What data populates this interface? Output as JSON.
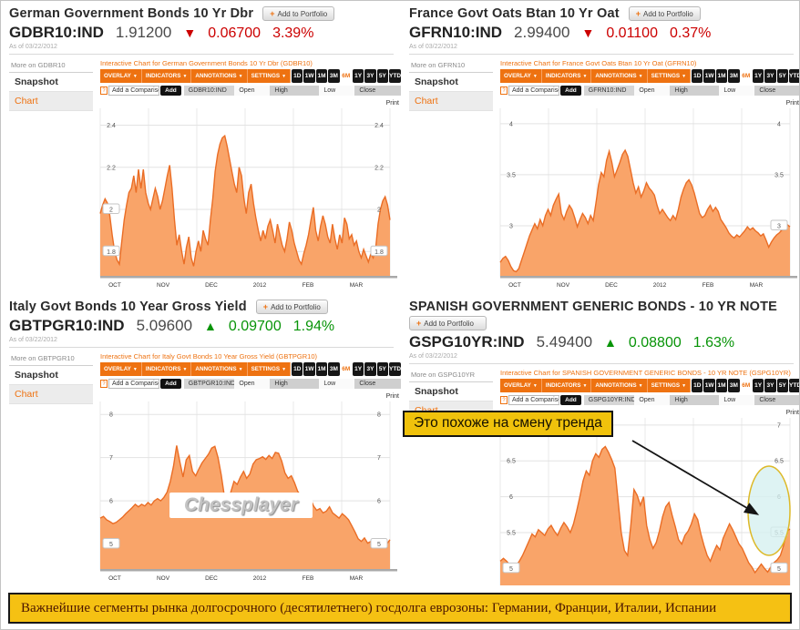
{
  "page": {
    "banner": {
      "text": "Важнейшие сегменты рынка долгосрочного (десятилетнего) госдолга еврозоны: Германии, Франции, Италии, Испании"
    },
    "annotation": {
      "text": "Это похоже на смену тренда"
    },
    "watermark": "Chessplayer"
  },
  "labels": {
    "add_to_portfolio": "Add to Portfolio",
    "snapshot": "Snapshot",
    "chart": "Chart"
  },
  "icons": {
    "plus": "+",
    "caret_down": "▼",
    "help": "?",
    "arrow_down": "▼",
    "arrow_up": "▲"
  },
  "toolbar": {
    "dropdowns": [
      "OVERLAY",
      "INDICATORS",
      "ANNOTATIONS",
      "SETTINGS"
    ],
    "periods": [
      "1D",
      "1W",
      "1M",
      "3M",
      "6M",
      "1Y",
      "3Y",
      "5Y",
      "YTD"
    ],
    "selected_period": "6M",
    "compare_hint": "Add a Comparison",
    "add_label": "Add",
    "fields": [
      "Open",
      "High",
      "Low",
      "Close"
    ],
    "print_label": "Print"
  },
  "colors": {
    "accent_orange": "#ee7211",
    "area_fill": "#f9a469",
    "area_line": "#ea6d25",
    "negative_red": "#cc0000",
    "positive_green": "#089408",
    "grid": "#e3e3e3",
    "banner_bg": "#f5c113",
    "callout_bg": "#f0c20c",
    "ellipse_stroke": "#ddb928"
  },
  "panels": [
    {
      "title": "German Government Bonds 10 Yr Dbr",
      "ticker": "GDBR10:IND",
      "price": "1.91200",
      "direction": "down",
      "arrow": "▼",
      "change": "0.06700",
      "change_pct": "3.39%",
      "as_of": "As of 03/22/2012",
      "more_on": "More on GDBR10",
      "interactive_link": "Interactive Chart for German Government Bonds 10 Yr Dbr (GDBR10)"
    },
    {
      "title": "France Govt Oats Btan 10 Yr Oat",
      "ticker": "GFRN10:IND",
      "price": "2.99400",
      "direction": "down",
      "arrow": "▼",
      "change": "0.01100",
      "change_pct": "0.37%",
      "as_of": "As of 03/22/2012",
      "more_on": "More on GFRN10",
      "interactive_link": "Interactive Chart for France Govt Oats Btan 10 Yr Oat (GFRN10)"
    },
    {
      "title": "Italy Govt Bonds 10 Year Gross Yield",
      "ticker": "GBTPGR10:IND",
      "price": "5.09600",
      "direction": "up",
      "arrow": "▲",
      "change": "0.09700",
      "change_pct": "1.94%",
      "as_of": "As of 03/22/2012",
      "more_on": "More on GBTPGR10",
      "interactive_link": "Interactive Chart for Italy Govt Bonds 10 Year Gross Yield (GBTPGR10)"
    },
    {
      "title": "SPANISH GOVERNMENT GENERIC BONDS - 10 YR NOTE",
      "ticker": "GSPG10YR:IND",
      "price": "5.49400",
      "direction": "up",
      "arrow": "▲",
      "change": "0.08800",
      "change_pct": "1.63%",
      "as_of": "As of 03/22/2012",
      "more_on": "More on GSPG10YR",
      "interactive_link": "Interactive Chart for SPANISH GOVERNMENT GENERIC BONDS - 10 YR NOTE (GSPG10YR)"
    }
  ],
  "chart_data": [
    {
      "type": "area",
      "title": "German Government Bonds 10 Yr Dbr (GDBR10), 6M yield",
      "x_labels": [
        "OCT",
        "NOV",
        "DEC",
        "2012",
        "FEB",
        "MAR"
      ],
      "yticks": [
        1.8,
        2,
        2.2,
        2.4
      ],
      "ylim": [
        1.68,
        2.48
      ],
      "values": [
        1.98,
        2.02,
        2.05,
        2.03,
        1.97,
        1.88,
        1.8,
        1.76,
        1.74,
        1.85,
        1.95,
        2.02,
        2.08,
        2.1,
        2.16,
        2.08,
        2.19,
        2.1,
        2.19,
        2.08,
        2.03,
        2.0,
        2.05,
        2.1,
        2.06,
        2.0,
        2.04,
        2.1,
        2.16,
        2.21,
        2.1,
        1.95,
        1.83,
        1.88,
        1.8,
        1.74,
        1.82,
        1.87,
        1.77,
        1.73,
        1.8,
        1.85,
        1.8,
        1.9,
        1.86,
        1.83,
        1.95,
        2.05,
        2.18,
        2.26,
        2.31,
        2.34,
        2.35,
        2.3,
        2.24,
        2.18,
        2.12,
        2.08,
        2.2,
        2.16,
        2.05,
        1.98,
        2.08,
        2.12,
        2.03,
        1.96,
        1.9,
        1.85,
        1.9,
        1.86,
        1.92,
        1.95,
        1.9,
        1.84,
        1.93,
        1.88,
        1.83,
        1.8,
        1.86,
        1.94,
        1.9,
        1.84,
        1.8,
        1.76,
        1.74,
        1.79,
        1.83,
        1.88,
        1.95,
        2.01,
        1.9,
        1.85,
        1.92,
        1.97,
        1.93,
        1.87,
        1.84,
        1.93,
        1.86,
        1.81,
        1.88,
        1.84,
        1.96,
        1.93,
        1.86,
        1.88,
        1.83,
        1.85,
        1.8,
        1.77,
        1.81,
        1.78,
        1.75,
        1.79,
        1.77,
        1.81,
        1.93,
        2.0,
        2.04,
        2.06,
        2.02,
        1.95
      ]
    },
    {
      "type": "area",
      "title": "France Govt Oats Btan 10 Yr Oat (GFRN10), 6M yield",
      "x_labels": [
        "OCT",
        "NOV",
        "DEC",
        "2012",
        "FEB",
        "MAR"
      ],
      "yticks": [
        3,
        3.5,
        4
      ],
      "ylim": [
        2.5,
        4.15
      ],
      "values": [
        2.64,
        2.68,
        2.7,
        2.66,
        2.6,
        2.56,
        2.55,
        2.58,
        2.66,
        2.74,
        2.82,
        2.9,
        2.96,
        3.02,
        2.97,
        3.06,
        3.0,
        3.1,
        3.16,
        3.1,
        3.2,
        3.26,
        3.31,
        3.12,
        3.06,
        3.14,
        3.2,
        3.16,
        3.08,
        2.99,
        3.06,
        3.12,
        3.08,
        3.02,
        3.1,
        3.05,
        3.22,
        3.4,
        3.52,
        3.48,
        3.64,
        3.73,
        3.62,
        3.48,
        3.55,
        3.62,
        3.7,
        3.74,
        3.68,
        3.55,
        3.42,
        3.32,
        3.38,
        3.28,
        3.34,
        3.42,
        3.37,
        3.34,
        3.3,
        3.2,
        3.12,
        3.16,
        3.12,
        3.08,
        3.05,
        3.1,
        3.06,
        3.16,
        3.28,
        3.36,
        3.42,
        3.45,
        3.4,
        3.32,
        3.22,
        3.12,
        3.08,
        3.1,
        3.16,
        3.2,
        3.14,
        3.18,
        3.14,
        3.06,
        3.02,
        2.98,
        2.93,
        2.9,
        2.88,
        2.91,
        2.89,
        2.92,
        2.95,
        2.99,
        2.96,
        2.98,
        2.95,
        2.93,
        2.9,
        2.92,
        2.86,
        2.79,
        2.84,
        2.88,
        2.91,
        2.93,
        2.96,
        2.99,
        3.01,
        2.99
      ]
    },
    {
      "type": "area",
      "title": "Italy Govt Bonds 10 Year Gross Yield (GBTPGR10), 6M yield",
      "x_labels": [
        "OCT",
        "NOV",
        "DEC",
        "2012",
        "FEB",
        "MAR"
      ],
      "yticks": [
        5,
        6,
        7,
        8
      ],
      "ylim": [
        4.4,
        8.3
      ],
      "values": [
        5.6,
        5.64,
        5.56,
        5.52,
        5.47,
        5.5,
        5.56,
        5.62,
        5.7,
        5.77,
        5.84,
        5.92,
        5.86,
        5.92,
        5.88,
        5.96,
        5.9,
        6.0,
        6.05,
        6.0,
        6.08,
        6.2,
        6.45,
        6.8,
        7.28,
        6.9,
        6.55,
        6.95,
        7.05,
        6.68,
        6.58,
        6.74,
        6.88,
        6.98,
        7.08,
        7.22,
        7.26,
        7.0,
        6.6,
        6.1,
        5.92,
        6.2,
        6.45,
        6.38,
        6.55,
        6.68,
        6.52,
        6.62,
        6.85,
        6.95,
        6.98,
        7.02,
        6.96,
        7.05,
        6.98,
        7.12,
        7.1,
        6.92,
        6.65,
        6.52,
        6.58,
        6.42,
        6.22,
        6.12,
        6.16,
        5.96,
        6.06,
        5.88,
        5.78,
        5.82,
        5.72,
        5.76,
        5.86,
        5.72,
        5.66,
        5.6,
        5.7,
        5.64,
        5.56,
        5.42,
        5.28,
        5.12,
        5.06,
        5.14,
        5.02,
        5.06,
        4.96,
        4.92,
        4.96,
        4.92,
        5.0,
        5.1
      ]
    },
    {
      "type": "area",
      "title": "SPANISH GOVERNMENT GENERIC BONDS - 10 YR NOTE (GSPG10YR), 6M yield",
      "x_labels": [
        "OCT",
        "NOV",
        "DEC",
        "2012",
        "FEB",
        "MAR"
      ],
      "yticks": [
        5,
        5.5,
        6,
        6.5,
        7
      ],
      "ylim": [
        4.75,
        7.1
      ],
      "values": [
        5.1,
        5.14,
        5.1,
        5.05,
        5.0,
        5.04,
        5.1,
        5.18,
        5.28,
        5.38,
        5.48,
        5.44,
        5.54,
        5.5,
        5.46,
        5.55,
        5.6,
        5.52,
        5.46,
        5.56,
        5.64,
        5.58,
        5.5,
        5.62,
        5.8,
        6.0,
        6.22,
        6.36,
        6.3,
        6.5,
        6.6,
        6.55,
        6.66,
        6.7,
        6.62,
        6.52,
        6.4,
        5.95,
        5.5,
        5.25,
        5.18,
        5.6,
        6.1,
        6.02,
        5.88,
        6.0,
        5.6,
        5.4,
        5.28,
        5.36,
        5.52,
        5.72,
        5.86,
        5.92,
        5.74,
        5.58,
        5.4,
        5.34,
        5.46,
        5.52,
        5.62,
        5.76,
        5.68,
        5.48,
        5.32,
        5.18,
        5.1,
        5.22,
        5.32,
        5.26,
        5.42,
        5.52,
        5.62,
        5.54,
        5.44,
        5.34,
        5.28,
        5.18,
        5.08,
        5.02,
        4.94,
        5.0,
        5.06,
        5.0,
        4.95,
        5.02,
        5.08,
        5.12,
        5.18,
        5.32,
        5.52,
        5.55
      ]
    }
  ]
}
